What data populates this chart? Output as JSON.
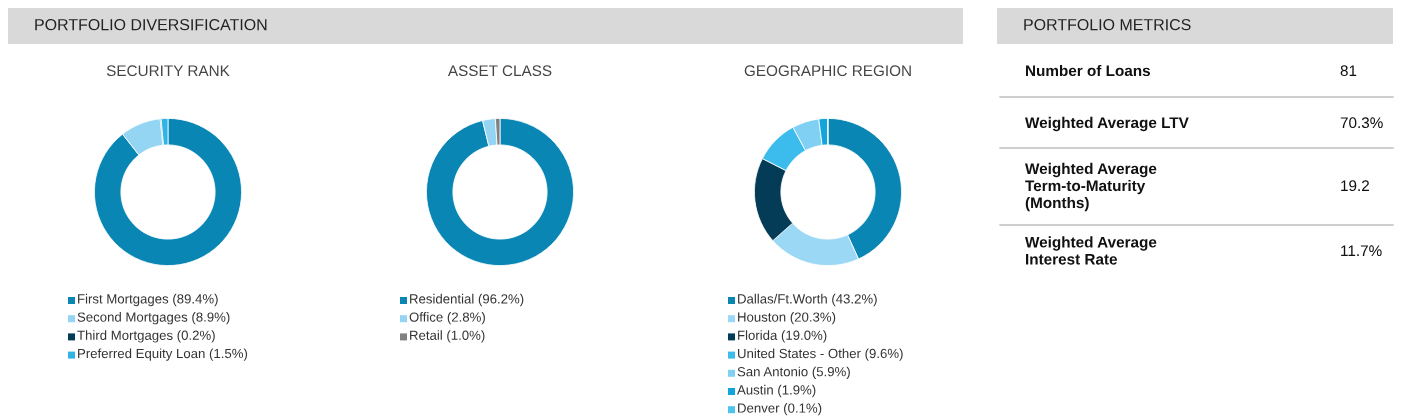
{
  "chart_data": [
    {
      "type": "donut",
      "title": "SECURITY RANK",
      "annotations": [
        "PORTFOLIO DIVERSIFICATION"
      ],
      "legend": "bottom",
      "categories": [
        "First Mortgages (89.4%)",
        "Second Mortgages (8.9%)",
        "Third Mortgages (0.2%)",
        "Preferred Equity Loan (1.5%)"
      ],
      "values": [
        89.4,
        8.9,
        0.2,
        1.5
      ],
      "colors": [
        "#0a86b4",
        "#93d5f3",
        "#043b56",
        "#2eb4e6"
      ]
    },
    {
      "type": "donut",
      "title": "ASSET CLASS",
      "legend": "bottom",
      "categories": [
        "Residential (96.2%)",
        "Office (2.8%)",
        "Retail (1.0%)"
      ],
      "values": [
        96.2,
        2.8,
        1.0
      ],
      "colors": [
        "#0a86b4",
        "#93d5f3",
        "#808080"
      ]
    },
    {
      "type": "donut",
      "title": "GEOGRAPHIC REGION",
      "legend": "bottom",
      "categories": [
        "Dallas/Ft.Worth (43.2%)",
        "Houston (20.3%)",
        "Florida (19.0%)",
        "United States - Other (9.6%)",
        "San Antonio (5.9%)",
        "Austin (1.9%)",
        "Denver (0.1%)"
      ],
      "values": [
        43.2,
        20.3,
        19.0,
        9.6,
        5.9,
        1.9,
        0.1
      ],
      "colors": [
        "#0a86b4",
        "#9bd8f5",
        "#043b56",
        "#3cbcec",
        "#80d0f3",
        "#12a5dc",
        "#4cc4ee"
      ]
    },
    {
      "type": "other",
      "title": "PORTFOLIO METRICS",
      "categories": [
        "Number of Loans",
        "Weighted Average LTV",
        "Weighted Average\nTerm-to-Maturity\n(Months)",
        "Weighted Average\nInterest Rate"
      ],
      "value_labels": [
        "81",
        "70.3%",
        "19.2",
        "11.7%"
      ]
    }
  ]
}
